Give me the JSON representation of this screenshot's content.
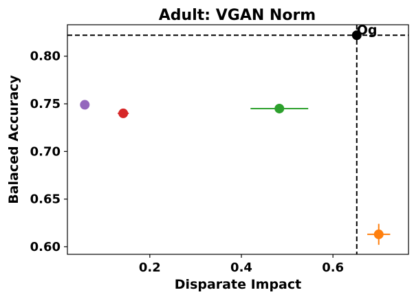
{
  "chart_data": {
    "type": "scatter",
    "title": "Adult: VGAN Norm",
    "xlabel": "Disparate Impact",
    "ylabel": "Balaced Accuracy",
    "xlim": [
      0.02,
      0.765
    ],
    "ylim": [
      0.592,
      0.833
    ],
    "xticks": [
      {
        "value": 0.2,
        "label": "0.2"
      },
      {
        "value": 0.4,
        "label": "0.4"
      },
      {
        "value": 0.6,
        "label": "0.6"
      }
    ],
    "yticks": [
      {
        "value": 0.6,
        "label": "0.60"
      },
      {
        "value": 0.65,
        "label": "0.65"
      },
      {
        "value": 0.7,
        "label": "0.70"
      },
      {
        "value": 0.75,
        "label": "0.75"
      },
      {
        "value": 0.8,
        "label": "0.80"
      }
    ],
    "grid": false,
    "reference_lines": {
      "horizontal_y": 0.822,
      "vertical_x": 0.652,
      "style": "dashed",
      "color": "#000000"
    },
    "points": [
      {
        "x": 0.652,
        "y": 0.822,
        "xerr": 0.0,
        "yerr": 0.0,
        "color": "#000000",
        "label": "Og"
      },
      {
        "x": 0.058,
        "y": 0.749,
        "xerr": 0.0,
        "yerr": 0.0,
        "color": "#9467bd"
      },
      {
        "x": 0.142,
        "y": 0.74,
        "xerr": 0.012,
        "yerr": 0.0,
        "color": "#d62728"
      },
      {
        "x": 0.483,
        "y": 0.745,
        "xerr": 0.063,
        "yerr": 0.005,
        "color": "#2ca02c"
      },
      {
        "x": 0.7,
        "y": 0.613,
        "xerr": 0.025,
        "yerr": 0.011,
        "color": "#ff7f0e"
      }
    ]
  }
}
